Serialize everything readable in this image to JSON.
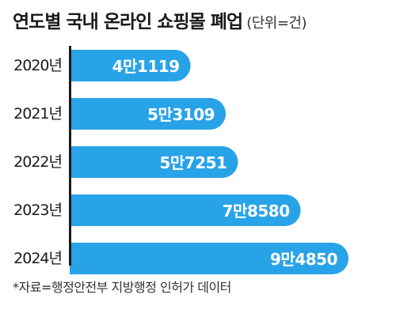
{
  "header": {
    "title": "연도별 국내 온라인 쇼핑몰 폐업",
    "unit": "(단위=건)"
  },
  "source": "*자료=행정안전부 지방행정 인허가 데이터",
  "colors": {
    "bar": "#29a3e8",
    "label_text": "#ffffff",
    "axis": "#1a1a1a"
  },
  "chart_data": {
    "type": "bar",
    "orientation": "horizontal",
    "title": "연도별 국내 온라인 쇼핑몰 폐업",
    "unit": "(단위=건)",
    "categories": [
      "2020년",
      "2021년",
      "2022년",
      "2023년",
      "2024년"
    ],
    "values": [
      41119,
      53109,
      57251,
      78580,
      94850
    ],
    "value_labels": [
      "4만1119",
      "5만3109",
      "5만7251",
      "7만8580",
      "9만4850"
    ],
    "grid": false,
    "legend": "none"
  }
}
